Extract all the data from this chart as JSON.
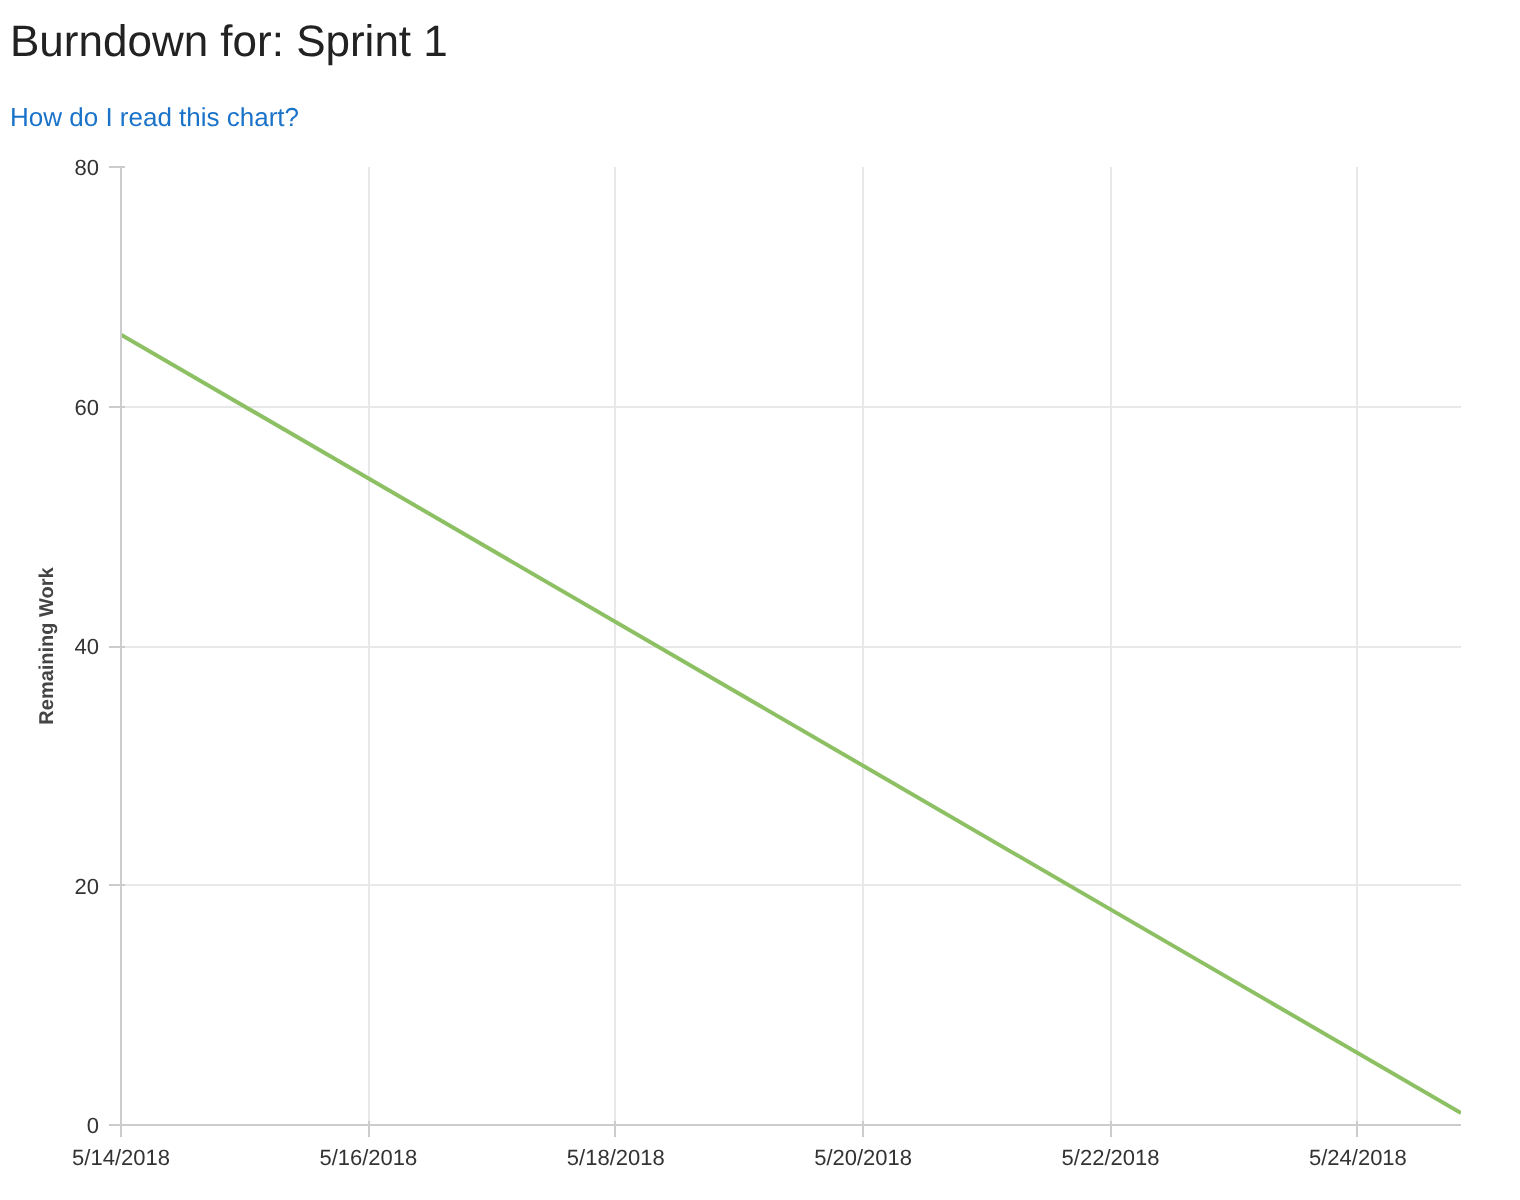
{
  "chart_data": {
    "type": "line",
    "title": "Burndown for: Sprint 1",
    "annotations": [
      "How do I read this chart?"
    ],
    "ylabel": "Remaining Work",
    "x": [
      "2018-05-14",
      "2018-05-24T20:00"
    ],
    "series": [
      {
        "color": "#8cc063",
        "values": [
          66,
          1
        ]
      }
    ],
    "xlim": [
      "2018-05-14",
      "2018-05-24T20:00"
    ],
    "xticks": [
      {
        "value": "2018-05-14",
        "label": "5/14/2018"
      },
      {
        "value": "2018-05-16",
        "label": "5/16/2018"
      },
      {
        "value": "2018-05-18",
        "label": "5/18/2018"
      },
      {
        "value": "2018-05-20",
        "label": "5/20/2018"
      },
      {
        "value": "2018-05-22",
        "label": "5/22/2018"
      },
      {
        "value": "2018-05-24",
        "label": "5/24/2018"
      }
    ],
    "ylim": [
      0,
      80
    ],
    "yticks": [
      0,
      20,
      40,
      60,
      80
    ],
    "grid": true,
    "marker": "none",
    "line_style": "solid"
  }
}
